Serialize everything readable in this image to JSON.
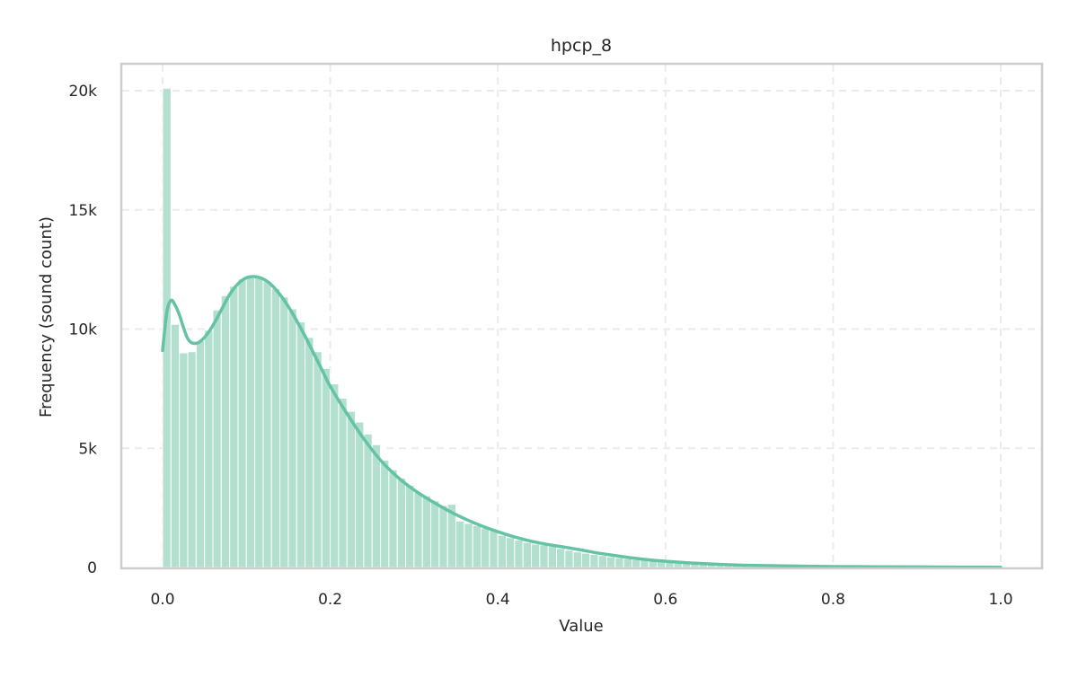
{
  "chart_data": {
    "type": "bar",
    "subtype": "histogram_with_kde",
    "title": "hpcp_8",
    "xlabel": "Value",
    "ylabel": "Frequency (sound count)",
    "xlim": [
      -0.05,
      1.05
    ],
    "ylim": [
      0,
      21200
    ],
    "x_ticks": [
      0.0,
      0.2,
      0.4,
      0.6,
      0.8,
      1.0
    ],
    "x_tick_labels": [
      "0.0",
      "0.2",
      "0.4",
      "0.6",
      "0.8",
      "1.0"
    ],
    "y_ticks": [
      0,
      5000,
      10000,
      15000,
      20000
    ],
    "y_tick_labels": [
      "0",
      "5k",
      "10k",
      "15k",
      "20k"
    ],
    "grid": true,
    "legend": null,
    "bin_width": 0.01,
    "bin_start": 0.0,
    "bins": 100,
    "values": [
      20100,
      10200,
      9000,
      9050,
      9500,
      9950,
      10800,
      11400,
      11800,
      12100,
      12150,
      12150,
      12000,
      11700,
      11350,
      10850,
      10300,
      9650,
      9050,
      8350,
      7700,
      7100,
      6550,
      6100,
      5600,
      5150,
      4500,
      4100,
      3750,
      3450,
      3150,
      3000,
      2800,
      2600,
      2650,
      1950,
      1850,
      1750,
      1650,
      1550,
      1350,
      1250,
      1150,
      1050,
      980,
      950,
      880,
      800,
      720,
      650,
      600,
      550,
      500,
      450,
      410,
      370,
      330,
      300,
      270,
      240,
      210,
      185,
      165,
      145,
      125,
      110,
      95,
      85,
      75,
      65,
      58,
      52,
      46,
      41,
      37,
      33,
      30,
      27,
      24,
      22,
      20,
      18,
      16,
      15,
      14,
      13,
      12,
      11,
      10,
      10,
      9,
      9,
      8,
      8,
      8,
      7,
      7,
      7,
      6,
      60
    ],
    "kde": {
      "x": [
        0.0,
        0.005,
        0.01,
        0.015,
        0.02,
        0.03,
        0.04,
        0.05,
        0.06,
        0.07,
        0.08,
        0.09,
        0.1,
        0.11,
        0.12,
        0.13,
        0.14,
        0.15,
        0.16,
        0.17,
        0.18,
        0.19,
        0.2,
        0.22,
        0.24,
        0.26,
        0.28,
        0.3,
        0.32,
        0.34,
        0.36,
        0.38,
        0.4,
        0.42,
        0.44,
        0.46,
        0.48,
        0.5,
        0.52,
        0.54,
        0.56,
        0.58,
        0.6,
        0.62,
        0.64,
        0.66,
        0.68,
        0.7,
        0.75,
        0.8,
        0.85,
        0.9,
        0.95,
        1.0
      ],
      "y": [
        9100,
        10700,
        11200,
        11000,
        10600,
        9600,
        9400,
        9650,
        10150,
        10800,
        11450,
        11900,
        12150,
        12200,
        12100,
        11850,
        11450,
        10950,
        10350,
        9700,
        9000,
        8300,
        7600,
        6450,
        5400,
        4500,
        3800,
        3250,
        2800,
        2400,
        2050,
        1750,
        1500,
        1280,
        1100,
        960,
        850,
        730,
        600,
        500,
        400,
        320,
        260,
        210,
        170,
        135,
        110,
        90,
        60,
        40,
        30,
        22,
        16,
        10
      ]
    },
    "colors": {
      "bar": "#b2dfce",
      "kde": "#66c2a5",
      "grid": "#ebebeb",
      "frame": "#cccccc"
    }
  }
}
